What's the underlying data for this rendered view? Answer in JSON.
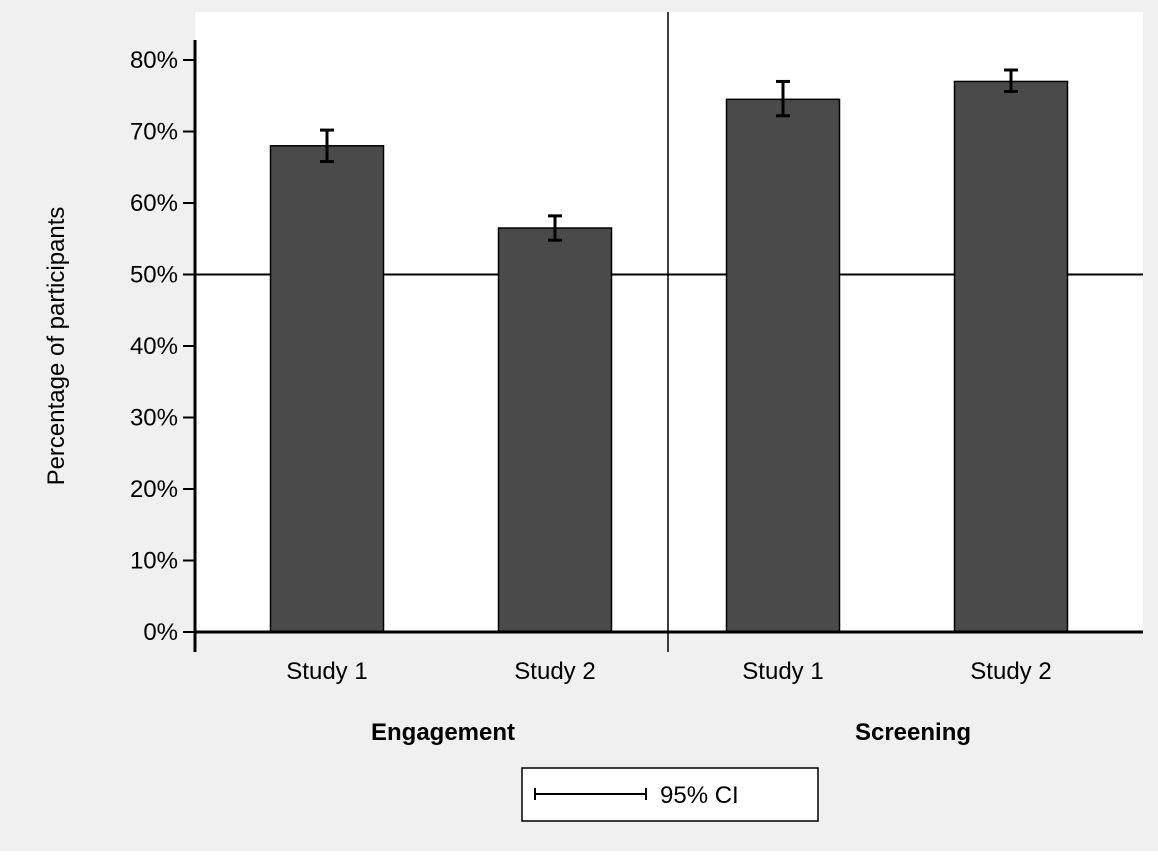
{
  "chart_data": {
    "type": "bar",
    "title": "",
    "xlabel": "",
    "ylabel": "Percentage of participants",
    "ylim": [
      0,
      80
    ],
    "yticks": [
      "0%",
      "10%",
      "20%",
      "30%",
      "40%",
      "50%",
      "60%",
      "70%",
      "80%"
    ],
    "reference_line": 50,
    "grid": false,
    "legend": {
      "placement": "bottom-center",
      "label": "95% CI"
    },
    "groups": [
      {
        "name": "Engagement",
        "bars": [
          {
            "category": "Study 1",
            "value": 68,
            "ci_low": 65.8,
            "ci_high": 70.2
          },
          {
            "category": "Study 2",
            "value": 56.5,
            "ci_low": 54.8,
            "ci_high": 58.2
          }
        ]
      },
      {
        "name": "Screening",
        "bars": [
          {
            "category": "Study 1",
            "value": 74.5,
            "ci_low": 72.2,
            "ci_high": 77
          },
          {
            "category": "Study 2",
            "value": 77,
            "ci_low": 75.6,
            "ci_high": 78.6
          }
        ]
      }
    ],
    "colors": {
      "background": "#f0f0f0",
      "plot_area": "#ffffff",
      "bar_fill": "#4a4a4a",
      "bar_stroke": "#000000",
      "axis": "#000000"
    }
  }
}
